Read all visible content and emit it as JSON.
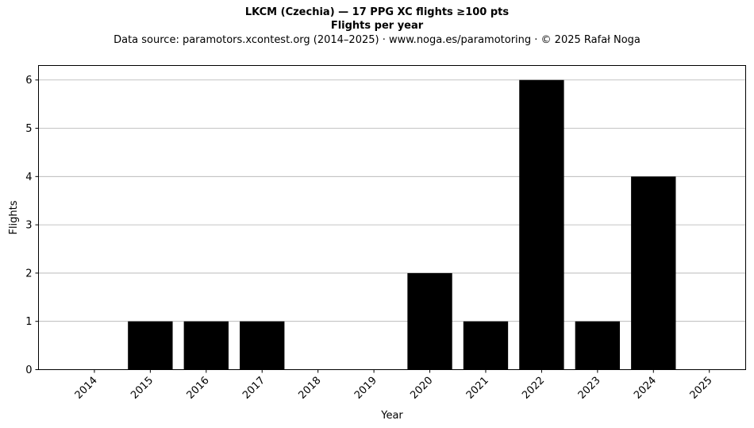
{
  "chart_data": {
    "type": "bar",
    "title": "LKCM (Czechia)  —  17 PPG XC flights ≥100 pts",
    "subtitle": "Flights per year",
    "source_line": "Data source: paramotors.xcontest.org (2014–2025)  ·  www.noga.es/paramotoring  ·  © 2025 Rafał Noga",
    "xlabel": "Year",
    "ylabel": "Flights",
    "categories": [
      "2014",
      "2015",
      "2016",
      "2017",
      "2018",
      "2019",
      "2020",
      "2021",
      "2022",
      "2023",
      "2024",
      "2025"
    ],
    "values": [
      0,
      1,
      1,
      1,
      0,
      0,
      2,
      1,
      6,
      1,
      4,
      0
    ],
    "ylim": [
      0,
      6.3
    ],
    "yticks": [
      0,
      1,
      2,
      3,
      4,
      5,
      6
    ],
    "grid": "y",
    "bar_color": "#000000",
    "grid_color": "#b0b0b0",
    "legend": "none"
  }
}
